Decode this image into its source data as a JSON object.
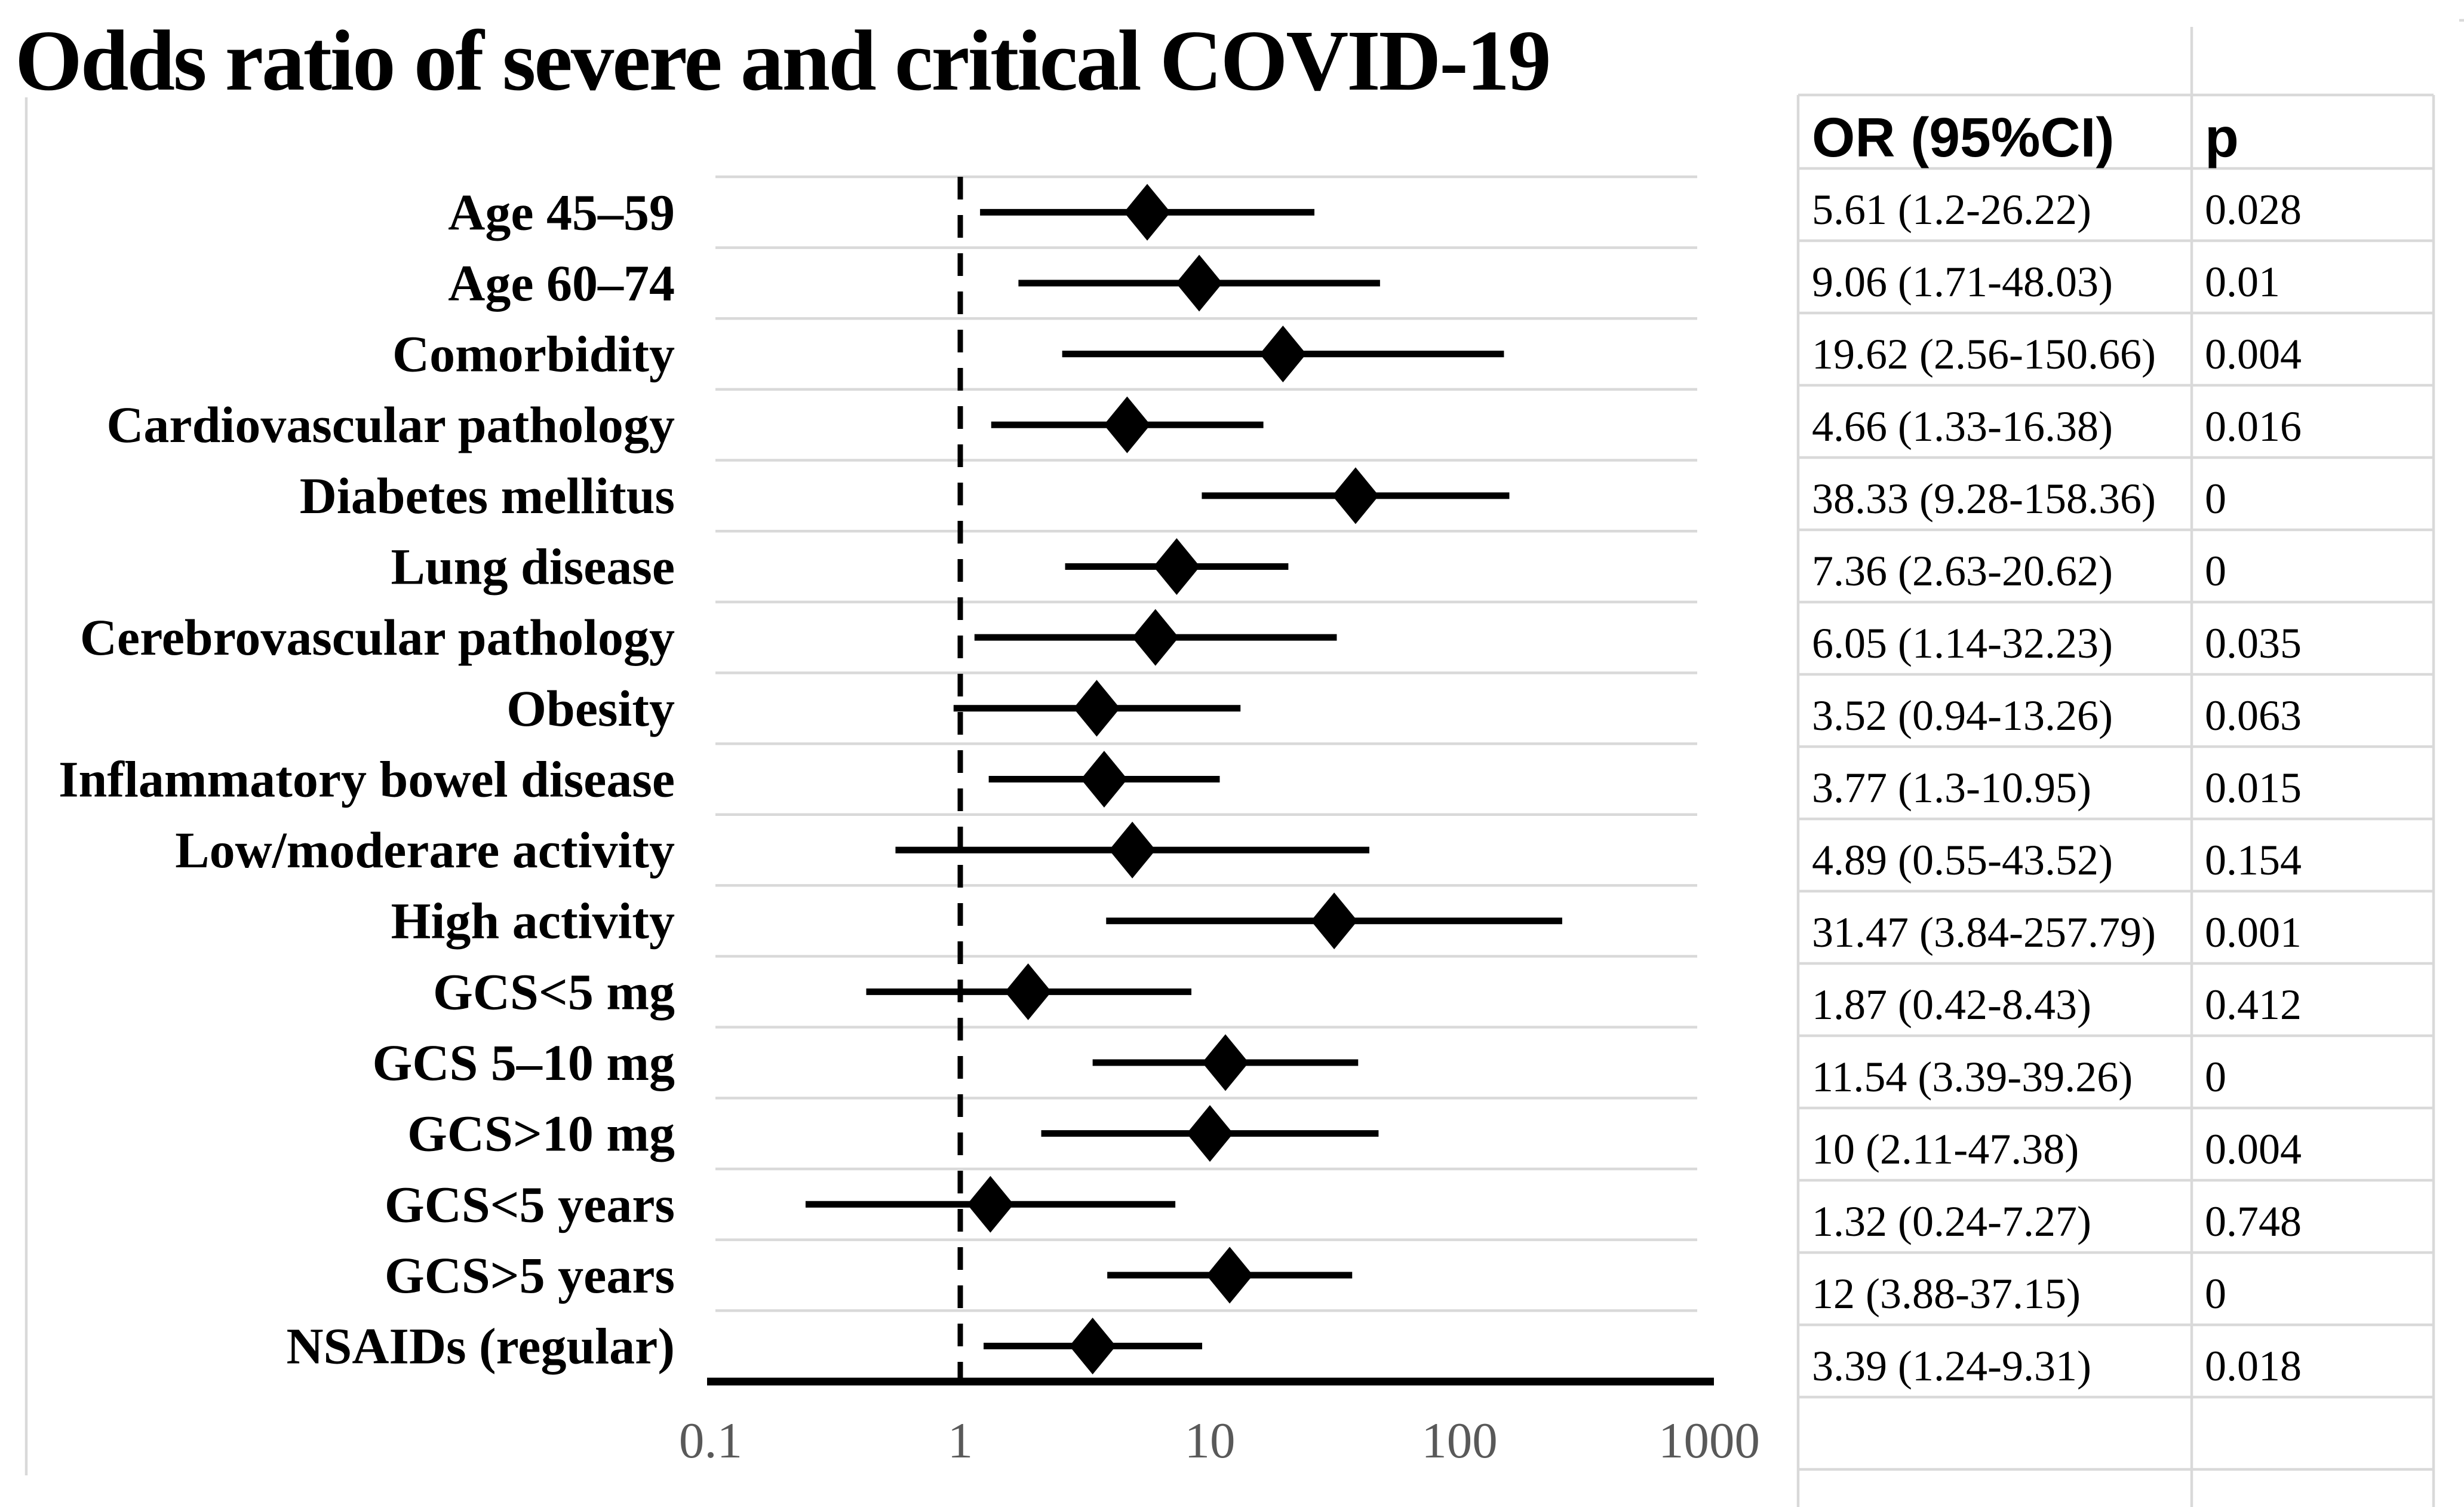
{
  "title": "Odds ratio of severe and critical COVID-19",
  "table": {
    "header_or": "OR (95%CI)",
    "header_p": "p"
  },
  "colors": {
    "ink": "#000000",
    "grid": "#d9d9d9",
    "tick_text": "#595959",
    "background": "#ffffff"
  },
  "chart_data": {
    "type": "forest",
    "x_scale": "log",
    "x_ticks": [
      "0.1",
      "1",
      "10",
      "100",
      "1000"
    ],
    "x_tick_values": [
      0.1,
      1,
      10,
      100,
      1000
    ],
    "xlim": [
      0.1,
      1000
    ],
    "reference_line": 1,
    "grid": "horizontal-row-lines",
    "marker": "black-diamond",
    "rows": [
      {
        "label": "Age 45–59",
        "or": 5.61,
        "ci_low": 1.2,
        "ci_high": 26.22,
        "or_ci_text": "5.61 (1.2-26.22)",
        "p": "0.028"
      },
      {
        "label": "Age 60–74",
        "or": 9.06,
        "ci_low": 1.71,
        "ci_high": 48.03,
        "or_ci_text": "9.06 (1.71-48.03)",
        "p": "0.01"
      },
      {
        "label": "Comorbidity",
        "or": 19.62,
        "ci_low": 2.56,
        "ci_high": 150.66,
        "or_ci_text": "19.62 (2.56-150.66)",
        "p": "0.004"
      },
      {
        "label": "Cardiovascular pathology",
        "or": 4.66,
        "ci_low": 1.33,
        "ci_high": 16.38,
        "or_ci_text": "4.66 (1.33-16.38)",
        "p": "0.016"
      },
      {
        "label": "Diabetes mellitus",
        "or": 38.33,
        "ci_low": 9.28,
        "ci_high": 158.36,
        "or_ci_text": "38.33 (9.28-158.36)",
        "p": "0"
      },
      {
        "label": "Lung disease",
        "or": 7.36,
        "ci_low": 2.63,
        "ci_high": 20.62,
        "or_ci_text": "7.36 (2.63-20.62)",
        "p": "0"
      },
      {
        "label": "Cerebrovascular pathology",
        "or": 6.05,
        "ci_low": 1.14,
        "ci_high": 32.23,
        "or_ci_text": "6.05 (1.14-32.23)",
        "p": "0.035"
      },
      {
        "label": "Obesity",
        "or": 3.52,
        "ci_low": 0.94,
        "ci_high": 13.26,
        "or_ci_text": "3.52 (0.94-13.26)",
        "p": "0.063"
      },
      {
        "label": "Inflammatory bowel disease",
        "or": 3.77,
        "ci_low": 1.3,
        "ci_high": 10.95,
        "or_ci_text": "3.77 (1.3-10.95)",
        "p": "0.015"
      },
      {
        "label": "Low/moderare activity",
        "or": 4.89,
        "ci_low": 0.55,
        "ci_high": 43.52,
        "or_ci_text": "4.89 (0.55-43.52)",
        "p": "0.154"
      },
      {
        "label": "High activity",
        "or": 31.47,
        "ci_low": 3.84,
        "ci_high": 257.79,
        "or_ci_text": "31.47 (3.84-257.79)",
        "p": "0.001"
      },
      {
        "label": "GCS<5 mg",
        "or": 1.87,
        "ci_low": 0.42,
        "ci_high": 8.43,
        "or_ci_text": "1.87 (0.42-8.43)",
        "p": "0.412"
      },
      {
        "label": "GCS 5–10 mg",
        "or": 11.54,
        "ci_low": 3.39,
        "ci_high": 39.26,
        "or_ci_text": "11.54 (3.39-39.26)",
        "p": "0"
      },
      {
        "label": "GCS>10 mg",
        "or": 10,
        "ci_low": 2.11,
        "ci_high": 47.38,
        "or_ci_text": "10 (2.11-47.38)",
        "p": "0.004"
      },
      {
        "label": "GCS<5 years",
        "or": 1.32,
        "ci_low": 0.24,
        "ci_high": 7.27,
        "or_ci_text": "1.32 (0.24-7.27)",
        "p": "0.748"
      },
      {
        "label": "GCS>5 years",
        "or": 12,
        "ci_low": 3.88,
        "ci_high": 37.15,
        "or_ci_text": "12 (3.88-37.15)",
        "p": "0"
      },
      {
        "label": "NSAIDs (regular)",
        "or": 3.39,
        "ci_low": 1.24,
        "ci_high": 9.31,
        "or_ci_text": "3.39 (1.24-9.31)",
        "p": "0.018"
      }
    ]
  }
}
